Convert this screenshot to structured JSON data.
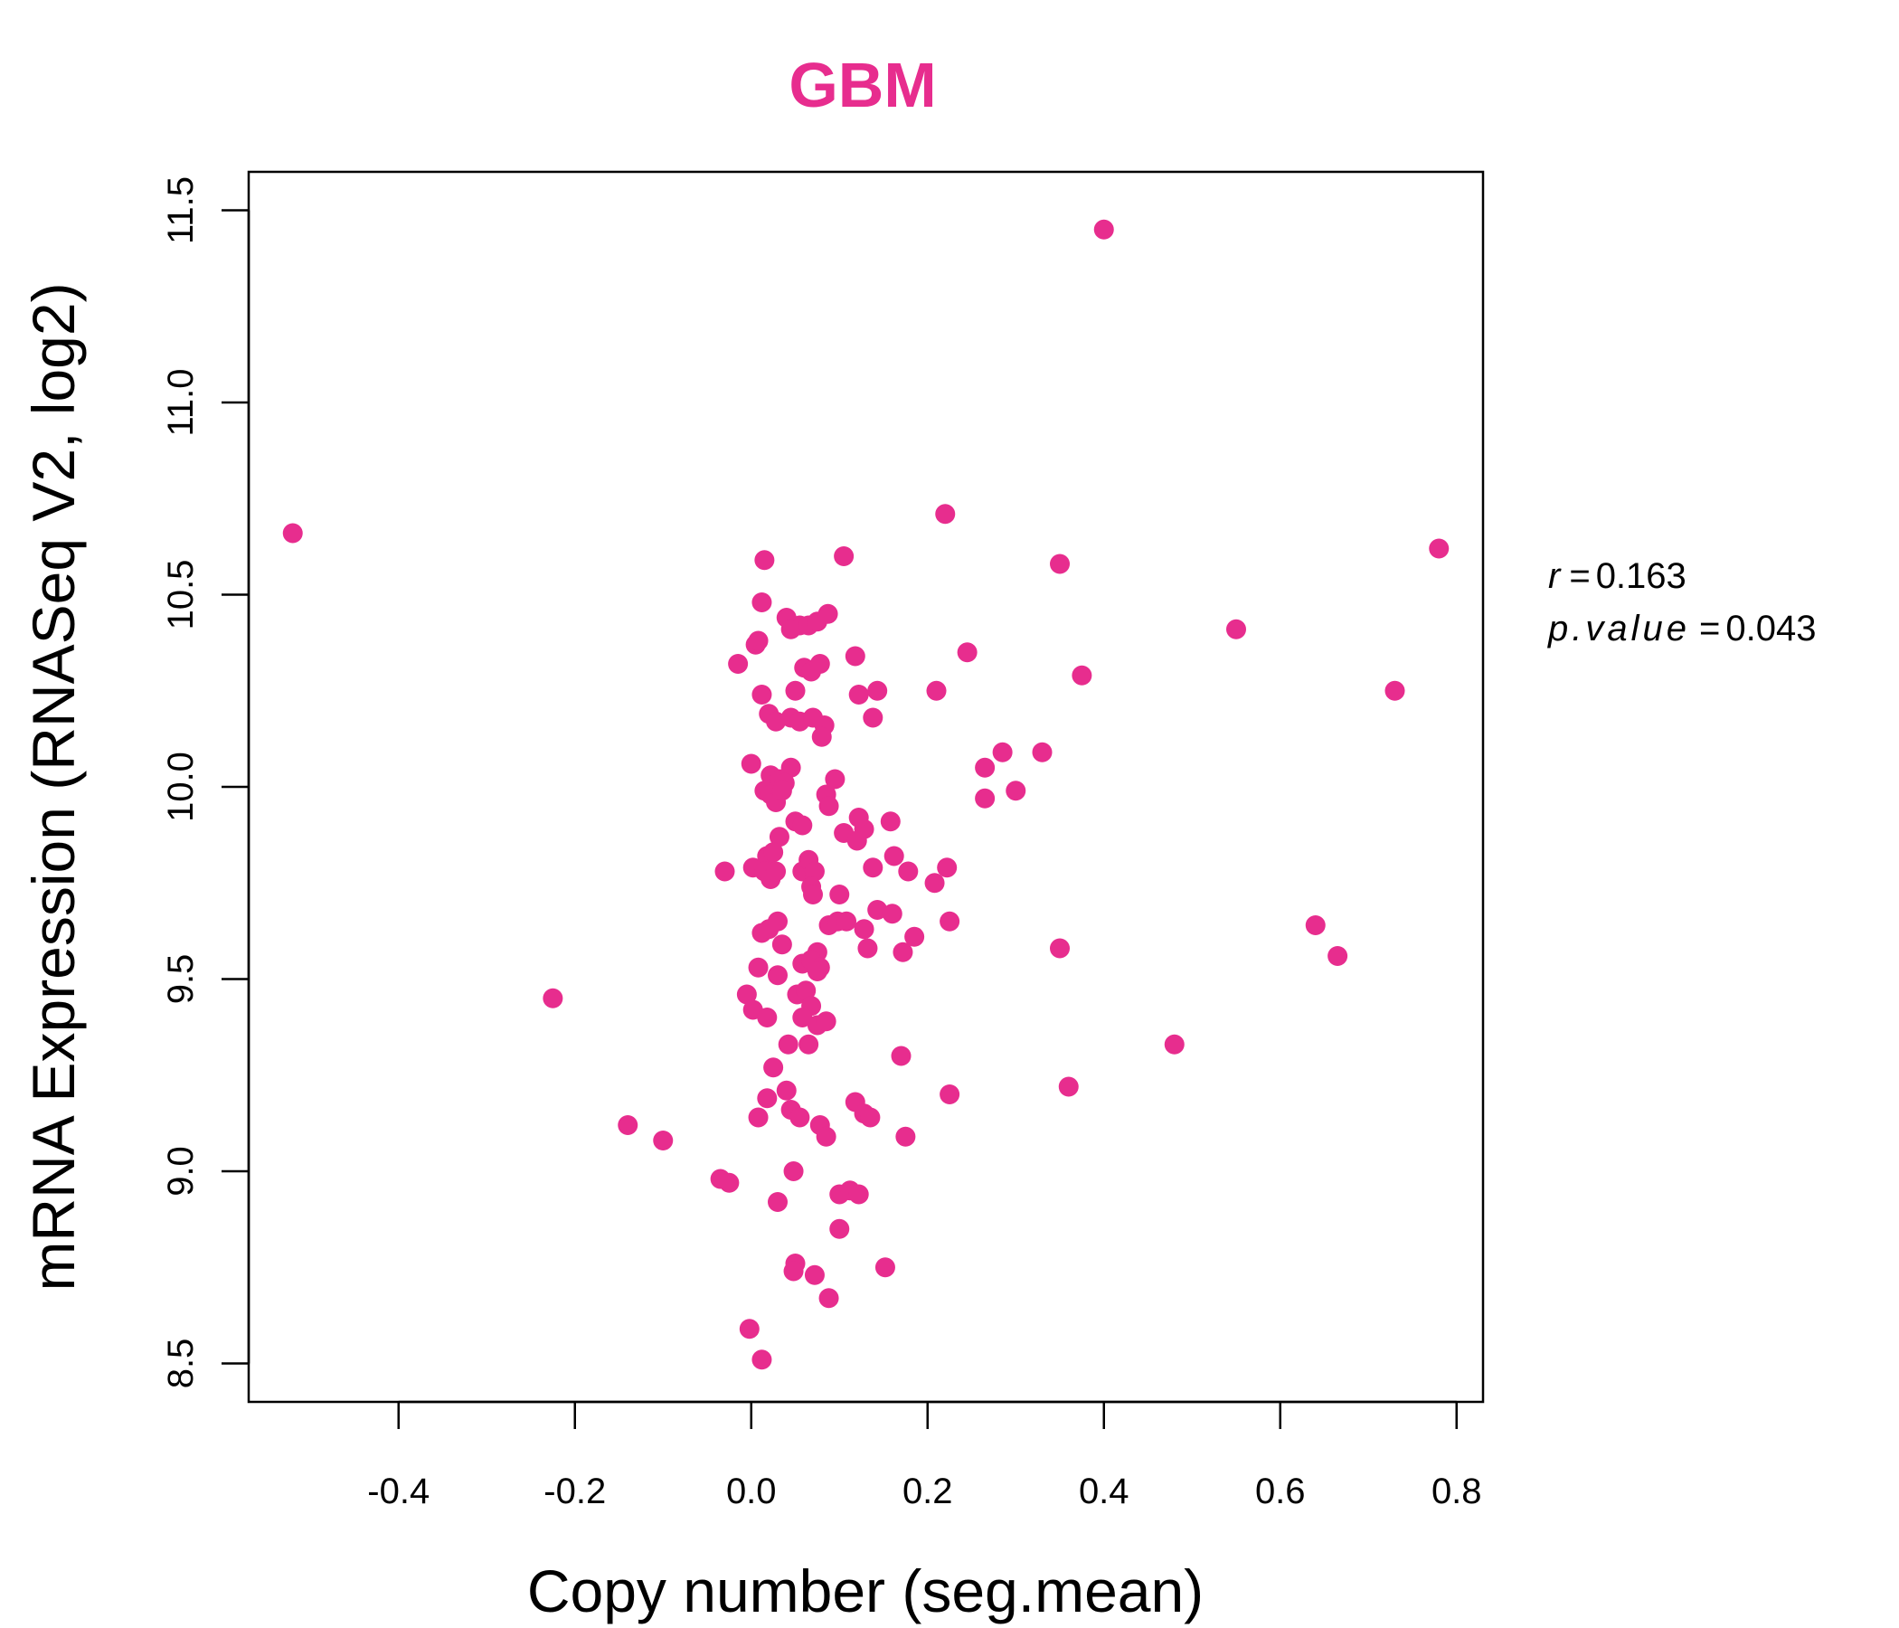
{
  "colors": {
    "point": "#E72D8E",
    "title": "#E72D8E",
    "axis": "#000000"
  },
  "chart_data": {
    "type": "scatter",
    "title": "GBM",
    "xlabel": "Copy number (seg.mean)",
    "ylabel": "mRNA Expression (RNASeq V2, log2)",
    "xlim": [
      -0.57,
      0.83
    ],
    "ylim": [
      8.4,
      11.6
    ],
    "xticks": [
      -0.4,
      -0.2,
      0.0,
      0.2,
      0.4,
      0.6,
      0.8
    ],
    "xtick_labels": [
      "-0.4",
      "-0.2",
      "0.0",
      "0.2",
      "0.4",
      "0.6",
      "0.8"
    ],
    "yticks": [
      8.5,
      9.0,
      9.5,
      10.0,
      10.5,
      11.0,
      11.5
    ],
    "ytick_labels": [
      "8.5",
      "9.0",
      "9.5",
      "10.0",
      "10.5",
      "11.0",
      "11.5"
    ],
    "grid": false,
    "annotations": [
      {
        "label": "r",
        "value": "0.163"
      },
      {
        "label": "p.value",
        "value": "0.043"
      }
    ],
    "points": [
      [
        -0.52,
        10.66
      ],
      [
        0.4,
        11.45
      ],
      [
        0.22,
        10.71
      ],
      [
        0.78,
        10.62
      ],
      [
        0.35,
        10.58
      ],
      [
        0.015,
        10.59
      ],
      [
        0.105,
        10.6
      ],
      [
        0.55,
        10.41
      ],
      [
        0.73,
        10.25
      ],
      [
        0.375,
        10.29
      ],
      [
        0.245,
        10.35
      ],
      [
        0.21,
        10.25
      ],
      [
        0.285,
        10.09
      ],
      [
        0.33,
        10.09
      ],
      [
        0.265,
        10.05
      ],
      [
        0.3,
        9.99
      ],
      [
        0.265,
        9.97
      ],
      [
        0.64,
        9.64
      ],
      [
        0.665,
        9.56
      ],
      [
        0.35,
        9.58
      ],
      [
        0.48,
        9.33
      ],
      [
        0.36,
        9.22
      ],
      [
        0.225,
        9.2
      ],
      [
        -0.225,
        9.45
      ],
      [
        -0.14,
        9.12
      ],
      [
        -0.1,
        9.08
      ],
      [
        -0.035,
        8.98
      ],
      [
        -0.025,
        8.97
      ],
      [
        -0.03,
        9.78
      ],
      [
        -0.015,
        10.32
      ],
      [
        -0.002,
        8.59
      ],
      [
        0.012,
        8.51
      ],
      [
        0.012,
        10.48
      ],
      [
        0.005,
        10.37
      ],
      [
        0.008,
        10.38
      ],
      [
        0.04,
        10.44
      ],
      [
        0.055,
        10.42
      ],
      [
        0.045,
        10.41
      ],
      [
        0.065,
        10.42
      ],
      [
        0.075,
        10.43
      ],
      [
        0.087,
        10.45
      ],
      [
        0.06,
        10.31
      ],
      [
        0.068,
        10.3
      ],
      [
        0.078,
        10.32
      ],
      [
        0.118,
        10.34
      ],
      [
        0.012,
        10.24
      ],
      [
        0.05,
        10.25
      ],
      [
        0.122,
        10.24
      ],
      [
        0.143,
        10.25
      ],
      [
        0.02,
        10.19
      ],
      [
        0.028,
        10.17
      ],
      [
        0.045,
        10.18
      ],
      [
        0.055,
        10.17
      ],
      [
        0.07,
        10.18
      ],
      [
        0.083,
        10.16
      ],
      [
        0.08,
        10.13
      ],
      [
        0.138,
        10.18
      ],
      [
        0.0,
        10.06
      ],
      [
        0.022,
        10.03
      ],
      [
        0.032,
        10.02
      ],
      [
        0.045,
        10.05
      ],
      [
        0.038,
        10.01
      ],
      [
        0.015,
        9.99
      ],
      [
        0.022,
        9.98
      ],
      [
        0.028,
        9.96
      ],
      [
        0.035,
        9.99
      ],
      [
        0.095,
        10.02
      ],
      [
        0.085,
        9.98
      ],
      [
        0.088,
        9.95
      ],
      [
        0.05,
        9.91
      ],
      [
        0.058,
        9.9
      ],
      [
        0.032,
        9.87
      ],
      [
        0.105,
        9.88
      ],
      [
        0.12,
        9.86
      ],
      [
        0.128,
        9.89
      ],
      [
        0.122,
        9.92
      ],
      [
        0.158,
        9.91
      ],
      [
        0.002,
        9.79
      ],
      [
        0.018,
        9.82
      ],
      [
        0.025,
        9.83
      ],
      [
        0.015,
        9.78
      ],
      [
        0.022,
        9.76
      ],
      [
        0.028,
        9.78
      ],
      [
        0.058,
        9.78
      ],
      [
        0.065,
        9.81
      ],
      [
        0.072,
        9.78
      ],
      [
        0.068,
        9.74
      ],
      [
        0.07,
        9.72
      ],
      [
        0.1,
        9.72
      ],
      [
        0.138,
        9.79
      ],
      [
        0.162,
        9.82
      ],
      [
        0.178,
        9.78
      ],
      [
        0.208,
        9.75
      ],
      [
        0.222,
        9.79
      ],
      [
        0.012,
        9.62
      ],
      [
        0.02,
        9.63
      ],
      [
        0.03,
        9.65
      ],
      [
        0.088,
        9.64
      ],
      [
        0.098,
        9.65
      ],
      [
        0.108,
        9.65
      ],
      [
        0.128,
        9.63
      ],
      [
        0.143,
        9.68
      ],
      [
        0.16,
        9.67
      ],
      [
        0.225,
        9.65
      ],
      [
        0.035,
        9.59
      ],
      [
        0.075,
        9.57
      ],
      [
        0.058,
        9.54
      ],
      [
        0.068,
        9.55
      ],
      [
        0.078,
        9.53
      ],
      [
        0.075,
        9.52
      ],
      [
        0.132,
        9.58
      ],
      [
        0.172,
        9.57
      ],
      [
        0.185,
        9.61
      ],
      [
        0.008,
        9.53
      ],
      [
        0.03,
        9.51
      ],
      [
        -0.005,
        9.46
      ],
      [
        0.002,
        9.42
      ],
      [
        0.018,
        9.4
      ],
      [
        0.052,
        9.46
      ],
      [
        0.062,
        9.47
      ],
      [
        0.068,
        9.43
      ],
      [
        0.058,
        9.4
      ],
      [
        0.075,
        9.38
      ],
      [
        0.085,
        9.39
      ],
      [
        0.042,
        9.33
      ],
      [
        0.065,
        9.33
      ],
      [
        0.025,
        9.27
      ],
      [
        0.17,
        9.3
      ],
      [
        0.04,
        9.21
      ],
      [
        0.018,
        9.19
      ],
      [
        0.045,
        9.16
      ],
      [
        0.055,
        9.14
      ],
      [
        0.008,
        9.14
      ],
      [
        0.118,
        9.18
      ],
      [
        0.128,
        9.15
      ],
      [
        0.135,
        9.14
      ],
      [
        0.078,
        9.12
      ],
      [
        0.085,
        9.09
      ],
      [
        0.175,
        9.09
      ],
      [
        0.048,
        9.0
      ],
      [
        0.1,
        8.94
      ],
      [
        0.112,
        8.95
      ],
      [
        0.122,
        8.94
      ],
      [
        0.03,
        8.92
      ],
      [
        0.1,
        8.85
      ],
      [
        0.05,
        8.76
      ],
      [
        0.048,
        8.74
      ],
      [
        0.072,
        8.73
      ],
      [
        0.152,
        8.75
      ],
      [
        0.088,
        8.67
      ]
    ]
  }
}
